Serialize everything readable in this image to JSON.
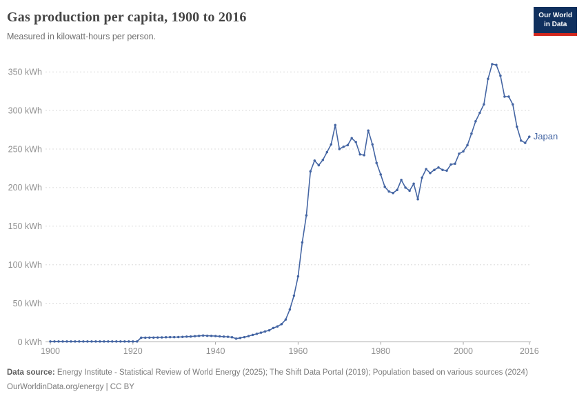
{
  "header": {
    "title": "Gas production per capita, 1900 to 2016",
    "subtitle": "Measured in kilowatt-hours per person.",
    "logo": {
      "line1": "Our World",
      "line2": "in Data"
    }
  },
  "footer": {
    "source_label": "Data source:",
    "source_text": "Energy Institute - Statistical Review of World Energy (2025); The Shift Data Portal (2019); Population based on various sources (2024)",
    "link_text": "OurWorldinData.org/energy | CC BY"
  },
  "colors": {
    "series_line": "#4465a3",
    "logo_navy": "#10305e",
    "logo_red": "#d2271d",
    "grid": "#dcdcdc",
    "axis": "#a3a3a3",
    "tick_text": "#909090"
  },
  "chart_data": {
    "type": "line",
    "title": "Gas production per capita, 1900 to 2016",
    "subtitle": "Measured in kilowatt-hours per person.",
    "unit": "kWh",
    "y_tick_suffix": " kWh",
    "xlim": [
      1900,
      2016
    ],
    "ylim": [
      0,
      365
    ],
    "x_ticks": [
      1900,
      1920,
      1940,
      1960,
      1980,
      2000,
      2016
    ],
    "y_ticks": [
      0,
      50,
      100,
      150,
      200,
      250,
      300,
      350
    ],
    "grid": "horizontal-dashed",
    "legend_position": "end-of-line",
    "series": [
      {
        "name": "Japan",
        "color": "#4465a3",
        "x": [
          1900,
          1901,
          1902,
          1903,
          1904,
          1905,
          1906,
          1907,
          1908,
          1909,
          1910,
          1911,
          1912,
          1913,
          1914,
          1915,
          1916,
          1917,
          1918,
          1919,
          1920,
          1921,
          1922,
          1923,
          1924,
          1925,
          1926,
          1927,
          1928,
          1929,
          1930,
          1931,
          1932,
          1933,
          1934,
          1935,
          1936,
          1937,
          1938,
          1939,
          1940,
          1941,
          1942,
          1943,
          1944,
          1945,
          1946,
          1947,
          1948,
          1949,
          1950,
          1951,
          1952,
          1953,
          1954,
          1955,
          1956,
          1957,
          1958,
          1959,
          1960,
          1961,
          1962,
          1963,
          1964,
          1965,
          1966,
          1967,
          1968,
          1969,
          1970,
          1971,
          1972,
          1973,
          1974,
          1975,
          1976,
          1977,
          1978,
          1979,
          1980,
          1981,
          1982,
          1983,
          1984,
          1985,
          1986,
          1987,
          1988,
          1989,
          1990,
          1991,
          1992,
          1993,
          1994,
          1995,
          1996,
          1997,
          1998,
          1999,
          2000,
          2001,
          2002,
          2003,
          2004,
          2005,
          2006,
          2007,
          2008,
          2009,
          2010,
          2011,
          2012,
          2013,
          2014,
          2015,
          2016
        ],
        "values": [
          0.5,
          0.5,
          0.5,
          0.5,
          0.5,
          0.5,
          0.5,
          0.5,
          0.5,
          0.5,
          0.5,
          0.5,
          0.5,
          0.5,
          0.5,
          0.5,
          0.5,
          0.5,
          0.5,
          0.5,
          0.5,
          0.5,
          5.5,
          5.5,
          5.6,
          5.6,
          5.7,
          5.8,
          6,
          6.2,
          6.2,
          6.3,
          6.5,
          6.8,
          7,
          7.4,
          7.8,
          8.2,
          8,
          7.8,
          7.6,
          7.2,
          6.8,
          6.6,
          6,
          4.2,
          5.2,
          6.2,
          7.5,
          9,
          10.5,
          12,
          13.5,
          15,
          18,
          20,
          23,
          29,
          42,
          60,
          85,
          129,
          164,
          221,
          235,
          229,
          236,
          246,
          256,
          281,
          250,
          253,
          255,
          264,
          259,
          243,
          242,
          274,
          256,
          232,
          217,
          201,
          195,
          193,
          197,
          210,
          200,
          196,
          205,
          185,
          213,
          224,
          219,
          223,
          226,
          223,
          222,
          230,
          231,
          244,
          247,
          255,
          270,
          286,
          297,
          308,
          341,
          360,
          359,
          345,
          318,
          318,
          308,
          279,
          261,
          258,
          266
        ]
      }
    ]
  }
}
